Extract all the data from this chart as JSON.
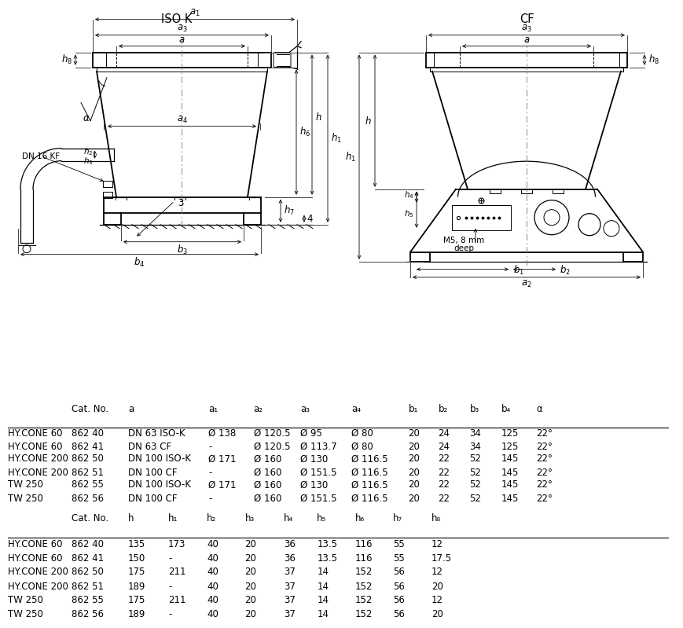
{
  "title_isok": "ISO K",
  "title_cf": "CF",
  "bg_color": "#ffffff",
  "table1_headers": [
    "",
    "Cat. No.",
    "a",
    "a₁",
    "a₂",
    "a₃",
    "a₄",
    "b₁",
    "b₂",
    "b₃",
    "b₄",
    "α"
  ],
  "table1_rows": [
    [
      "HY.CONE 60",
      "862 40",
      "DN 63 ISO-K",
      "Ø 138",
      "Ø 120.5",
      "Ø 95",
      "Ø 80",
      "20",
      "24",
      "34",
      "125",
      "22°"
    ],
    [
      "HY.CONE 60",
      "862 41",
      "DN 63 CF",
      "-",
      "Ø 120.5",
      "Ø 113.7",
      "Ø 80",
      "20",
      "24",
      "34",
      "125",
      "22°"
    ],
    [
      "HY.CONE 200",
      "862 50",
      "DN 100 ISO-K",
      "Ø 171",
      "Ø 160",
      "Ø 130",
      "Ø 116.5",
      "20",
      "22",
      "52",
      "145",
      "22°"
    ],
    [
      "HY.CONE 200",
      "862 51",
      "DN 100 CF",
      "-",
      "Ø 160",
      "Ø 151.5",
      "Ø 116.5",
      "20",
      "22",
      "52",
      "145",
      "22°"
    ],
    [
      "TW 250",
      "862 55",
      "DN 100 ISO-K",
      "Ø 171",
      "Ø 160",
      "Ø 130",
      "Ø 116.5",
      "20",
      "22",
      "52",
      "145",
      "22°"
    ],
    [
      "TW 250",
      "862 56",
      "DN 100 CF",
      "-",
      "Ø 160",
      "Ø 151.5",
      "Ø 116.5",
      "20",
      "22",
      "52",
      "145",
      "22°"
    ]
  ],
  "table2_headers": [
    "",
    "Cat. No.",
    "h",
    "h₁",
    "h₂",
    "h₃",
    "h₄",
    "h₅",
    "h₆",
    "h₇",
    "h₈"
  ],
  "table2_rows": [
    [
      "HY.CONE 60",
      "862 40",
      "135",
      "173",
      "40",
      "20",
      "36",
      "13.5",
      "116",
      "55",
      "12"
    ],
    [
      "HY.CONE 60",
      "862 41",
      "150",
      "-",
      "40",
      "20",
      "36",
      "13.5",
      "116",
      "55",
      "17.5"
    ],
    [
      "HY.CONE 200",
      "862 50",
      "175",
      "211",
      "40",
      "20",
      "37",
      "14",
      "152",
      "56",
      "12"
    ],
    [
      "HY.CONE 200",
      "862 51",
      "189",
      "-",
      "40",
      "20",
      "37",
      "14",
      "152",
      "56",
      "20"
    ],
    [
      "TW 250",
      "862 55",
      "175",
      "211",
      "40",
      "20",
      "37",
      "14",
      "152",
      "56",
      "12"
    ],
    [
      "TW 250",
      "862 56",
      "189",
      "-",
      "40",
      "20",
      "37",
      "14",
      "152",
      "56",
      "20"
    ]
  ]
}
